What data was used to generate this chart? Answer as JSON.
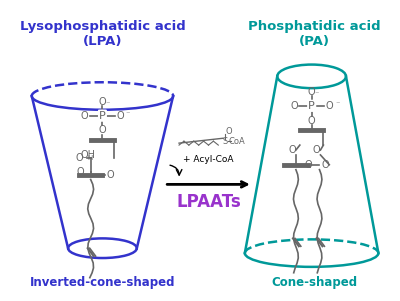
{
  "bg_color": "#ffffff",
  "lpa_color": "#3333cc",
  "pa_color": "#009999",
  "arrow_color": "#000000",
  "lpaat_color": "#9933cc",
  "molecule_color": "#666666",
  "title_lpa": "Lysophosphatidic acid\n(LPA)",
  "title_pa": "Phosphatidic acid\n(PA)",
  "label_lpa": "Inverted-cone-shaped",
  "label_pa": "Cone-shaped",
  "lpaat_label": "LPAATs",
  "acyl_coa_label": "+ Acyl-CoA"
}
